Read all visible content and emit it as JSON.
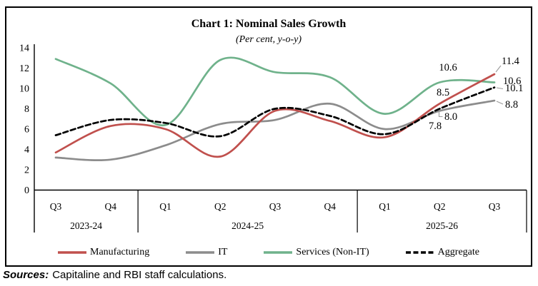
{
  "chart": {
    "title": "Chart 1: Nominal Sales Growth",
    "subtitle": "(Per cent, y-o-y)"
  },
  "chart_data": {
    "type": "line",
    "title": "Chart 1: Nominal Sales Growth",
    "subtitle": "(Per cent, y-o-y)",
    "ylim": [
      0,
      14
    ],
    "ytick_step": 2,
    "ytick_labels": [
      "0",
      "2",
      "4",
      "6",
      "8",
      "10",
      "12",
      "14"
    ],
    "x_quarters": [
      "Q3",
      "Q4",
      "Q1",
      "Q2",
      "Q3",
      "Q4",
      "Q1",
      "Q2",
      "Q3"
    ],
    "x_year_groups": [
      {
        "label": "2023-24",
        "quarters": 2
      },
      {
        "label": "2024-25",
        "quarters": 4
      },
      {
        "label": "2025-26",
        "quarters": 3
      }
    ],
    "grid": false,
    "legend_position": "bottom",
    "series": [
      {
        "name": "Services (Non-IT)",
        "color": "#6fb28b",
        "line_style": "solid",
        "values": [
          12.9,
          10.5,
          6.4,
          12.8,
          11.6,
          11.1,
          7.5,
          10.6,
          10.6
        ]
      },
      {
        "name": "IT",
        "color": "#8c8c8c",
        "line_style": "solid",
        "values": [
          3.2,
          3.0,
          4.4,
          6.5,
          6.9,
          8.5,
          6.0,
          7.8,
          8.8
        ]
      },
      {
        "name": "Manufacturing",
        "color": "#c0504d",
        "line_style": "solid",
        "values": [
          3.7,
          6.3,
          6.0,
          3.3,
          7.8,
          6.8,
          5.2,
          8.5,
          11.4
        ]
      },
      {
        "name": "Aggregate",
        "color": "#000000",
        "line_style": "dashed",
        "values": [
          5.4,
          6.9,
          6.6,
          5.3,
          8.0,
          7.3,
          5.5,
          8.0,
          10.1
        ]
      }
    ],
    "legend_order": [
      "Manufacturing",
      "IT",
      "Services (Non-IT)",
      "Aggregate"
    ],
    "point_labels": [
      {
        "series": "Services (Non-IT)",
        "index": 7,
        "text": "10.6",
        "color": "#6fb28b"
      },
      {
        "series": "Manufacturing",
        "index": 7,
        "text": "8.5",
        "color": "#c0504d"
      },
      {
        "series": "Aggregate",
        "index": 7,
        "text": "8.0",
        "color": "#000000"
      },
      {
        "series": "IT",
        "index": 7,
        "text": "7.8",
        "color": "#a6a6a6"
      },
      {
        "series": "Manufacturing",
        "index": 8,
        "text": "11.4",
        "color": "#c0504d"
      },
      {
        "series": "Services (Non-IT)",
        "index": 8,
        "text": "10.6",
        "color": "#6fb28b"
      },
      {
        "series": "Aggregate",
        "index": 8,
        "text": "10.1",
        "color": "#000000"
      },
      {
        "series": "IT",
        "index": 8,
        "text": "8.8",
        "color": "#a6a6a6"
      }
    ]
  },
  "footer": {
    "sources_label": "Sources:",
    "sources_text": "Capitaline and RBI staff calculations."
  }
}
